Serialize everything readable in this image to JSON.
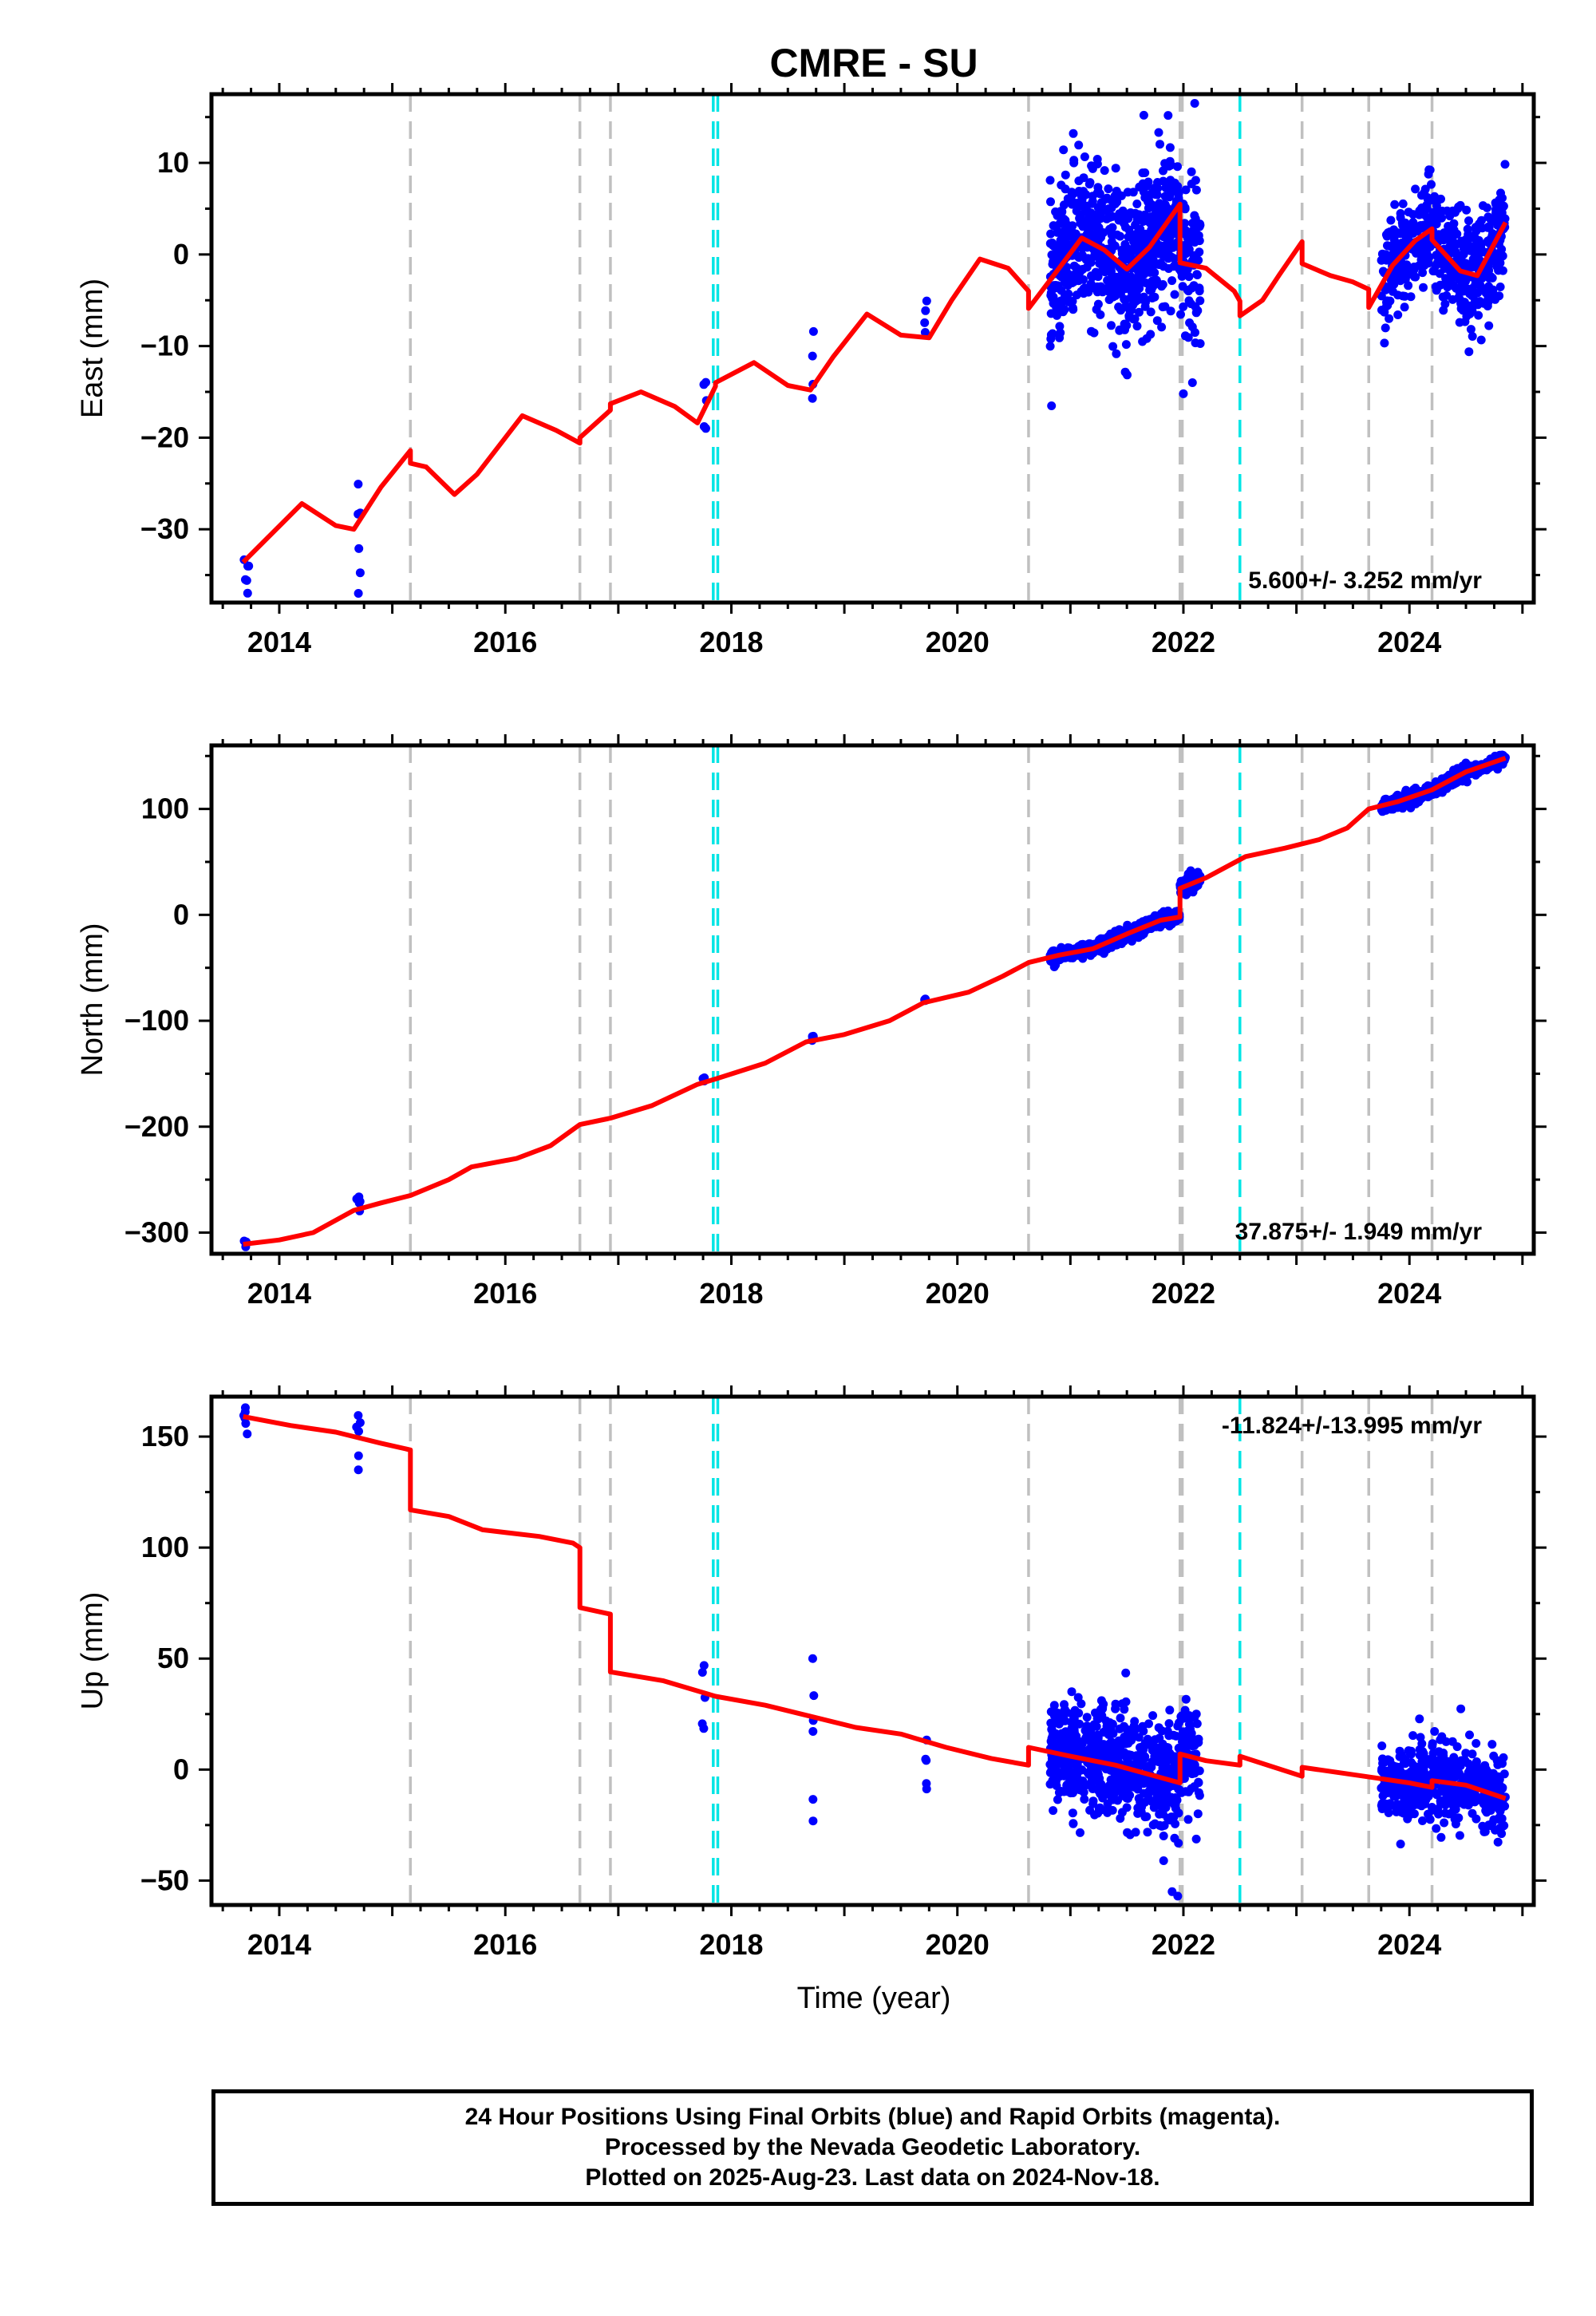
{
  "title": "CMRE - SU",
  "xlabel": "Time (year)",
  "footer": {
    "line1": "24 Hour Positions Using Final Orbits (blue) and Rapid Orbits (magenta).",
    "line2": "Processed by the Nevada Geodetic Laboratory.",
    "line3": "Plotted on 2025-Aug-23. Last data on 2024-Nov-18."
  },
  "colors": {
    "data": "#0000ff",
    "model": "#ff0000",
    "equipment_change": "#c0c0c0",
    "earthquake": "#00e5e5"
  },
  "chart_data": [
    {
      "type": "scatter",
      "ylabel": "East (mm)",
      "xlim": [
        2013.4,
        2025.1
      ],
      "ylim": [
        -38,
        17.5
      ],
      "yticks": [
        -30,
        -20,
        -10,
        0,
        10
      ],
      "xticks": [
        2014,
        2016,
        2018,
        2020,
        2022,
        2024
      ],
      "rate_text": "5.600+/- 3.252 mm/yr",
      "rate_position": "bottom-right",
      "scatter_clusters": [
        {
          "x": [
            2013.68,
            2013.73
          ],
          "y_center": -33,
          "y_spread": 2.5,
          "n": 5
        },
        {
          "x": [
            2014.69,
            2014.72
          ],
          "y_center": -30,
          "y_spread": 4,
          "n": 5
        },
        {
          "x": [
            2017.75,
            2017.78
          ],
          "y_center": -16,
          "y_spread": 2,
          "n": 5
        },
        {
          "x": [
            2018.71,
            2018.73
          ],
          "y_center": -11,
          "y_spread": 4,
          "n": 4
        },
        {
          "x": [
            2019.71,
            2019.73
          ],
          "y_center": -7,
          "y_spread": 1.5,
          "n": 4
        },
        {
          "x": [
            2020.82,
            2021.95
          ],
          "y_center": 0,
          "y_spread": 4,
          "n": 700
        },
        {
          "x": [
            2021.95,
            2022.15
          ],
          "y_center": -2,
          "y_spread": 4,
          "n": 90
        },
        {
          "x": [
            2023.75,
            2024.85
          ],
          "y_center": 0,
          "y_spread": 3,
          "n": 500
        }
      ],
      "outliers": [
        [
          2021.65,
          15.2
        ],
        [
          2022.1,
          16.5
        ],
        [
          2022.0,
          -15.2
        ],
        [
          2022.08,
          -14
        ],
        [
          2013.7,
          -35.5
        ],
        [
          2014.7,
          -37
        ]
      ],
      "model_breaks": [
        2015.16,
        2016.66,
        2016.93,
        2017.86,
        2020.63,
        2021.97,
        2022.5,
        2023.05,
        2023.64,
        2024.2
      ],
      "model_curve": [
        [
          2013.68,
          -33.6
        ],
        [
          2014.2,
          -27.2
        ],
        [
          2014.5,
          -29.6
        ],
        [
          2014.66,
          -30.0
        ],
        [
          2014.9,
          -25.4
        ],
        [
          2015.16,
          -21.4
        ],
        [
          2015.16,
          -22.8
        ],
        [
          2015.3,
          -23.2
        ],
        [
          2015.55,
          -26.2
        ],
        [
          2015.75,
          -24.0
        ],
        [
          2016.15,
          -17.6
        ],
        [
          2016.45,
          -19.2
        ],
        [
          2016.66,
          -20.6
        ],
        [
          2016.66,
          -20.0
        ],
        [
          2016.93,
          -17.0
        ],
        [
          2016.93,
          -16.3
        ],
        [
          2017.2,
          -15.0
        ],
        [
          2017.5,
          -16.6
        ],
        [
          2017.7,
          -18.4
        ],
        [
          2017.86,
          -14.4
        ],
        [
          2017.86,
          -14.0
        ],
        [
          2018.2,
          -11.8
        ],
        [
          2018.5,
          -14.3
        ],
        [
          2018.7,
          -14.8
        ],
        [
          2018.9,
          -11.2
        ],
        [
          2019.2,
          -6.5
        ],
        [
          2019.5,
          -8.8
        ],
        [
          2019.75,
          -9.1
        ],
        [
          2019.95,
          -5.0
        ],
        [
          2020.2,
          -0.5
        ],
        [
          2020.45,
          -1.5
        ],
        [
          2020.63,
          -4.0
        ],
        [
          2020.63,
          -5.9
        ],
        [
          2020.9,
          -1.5
        ],
        [
          2021.1,
          1.8
        ],
        [
          2021.3,
          0.5
        ],
        [
          2021.5,
          -1.6
        ],
        [
          2021.7,
          0.8
        ],
        [
          2021.97,
          5.5
        ],
        [
          2021.97,
          -0.9
        ],
        [
          2022.2,
          -1.5
        ],
        [
          2022.45,
          -4.0
        ],
        [
          2022.5,
          -5.1
        ],
        [
          2022.5,
          -6.7
        ],
        [
          2022.7,
          -5.0
        ],
        [
          2022.85,
          -2.2
        ],
        [
          2023.05,
          1.4
        ],
        [
          2023.05,
          -1.0
        ],
        [
          2023.3,
          -2.3
        ],
        [
          2023.5,
          -3.0
        ],
        [
          2023.64,
          -3.8
        ],
        [
          2023.64,
          -5.8
        ],
        [
          2023.85,
          -1.2
        ],
        [
          2024.05,
          1.5
        ],
        [
          2024.2,
          2.8
        ],
        [
          2024.2,
          1.6
        ],
        [
          2024.45,
          -1.8
        ],
        [
          2024.6,
          -2.3
        ],
        [
          2024.85,
          3.5
        ]
      ]
    },
    {
      "type": "scatter",
      "ylabel": "North (mm)",
      "xlim": [
        2013.4,
        2025.1
      ],
      "ylim": [
        -320,
        160
      ],
      "yticks": [
        -300,
        -200,
        -100,
        0,
        100
      ],
      "xticks": [
        2014,
        2016,
        2018,
        2020,
        2022,
        2024
      ],
      "rate_text": "37.875+/- 1.949 mm/yr",
      "rate_position": "bottom-right",
      "scatter_clusters": [
        {
          "x": [
            2013.68,
            2013.72
          ],
          "y_center": -311,
          "y_spread": 2,
          "n": 4
        },
        {
          "x": [
            2014.68,
            2014.72
          ],
          "y_center": -270,
          "y_spread": 4,
          "n": 5
        },
        {
          "x": [
            2017.74,
            2017.77
          ],
          "y_center": -155,
          "y_spread": 2,
          "n": 4
        },
        {
          "x": [
            2018.71,
            2018.73
          ],
          "y_center": -117,
          "y_spread": 3,
          "n": 4
        },
        {
          "x": [
            2019.71,
            2019.73
          ],
          "y_center": -80,
          "y_spread": 2,
          "n": 3
        },
        {
          "x": [
            2020.82,
            2021.95
          ],
          "y_center": -20,
          "y_spread": 3,
          "n": 700
        },
        {
          "x": [
            2021.95,
            2022.15
          ],
          "y_center": 30,
          "y_spread": 4,
          "n": 90
        },
        {
          "x": [
            2023.75,
            2024.85
          ],
          "y_center": 120,
          "y_spread": 3,
          "n": 500
        }
      ],
      "outliers": [],
      "model_breaks": [
        2021.97
      ],
      "model_curve": [
        [
          2013.68,
          -311
        ],
        [
          2014.0,
          -307
        ],
        [
          2014.3,
          -300
        ],
        [
          2014.66,
          -279
        ],
        [
          2014.9,
          -272
        ],
        [
          2015.16,
          -265
        ],
        [
          2015.5,
          -250
        ],
        [
          2015.7,
          -238
        ],
        [
          2016.1,
          -230
        ],
        [
          2016.4,
          -218
        ],
        [
          2016.66,
          -198
        ],
        [
          2016.93,
          -192
        ],
        [
          2017.3,
          -180
        ],
        [
          2017.7,
          -160
        ],
        [
          2017.86,
          -155
        ],
        [
          2018.3,
          -140
        ],
        [
          2018.66,
          -120
        ],
        [
          2019.0,
          -113
        ],
        [
          2019.4,
          -100
        ],
        [
          2019.7,
          -83
        ],
        [
          2020.1,
          -73
        ],
        [
          2020.4,
          -58
        ],
        [
          2020.63,
          -45
        ],
        [
          2020.9,
          -38
        ],
        [
          2021.2,
          -32
        ],
        [
          2021.5,
          -18
        ],
        [
          2021.8,
          -5
        ],
        [
          2021.97,
          -2
        ],
        [
          2021.97,
          25
        ],
        [
          2022.2,
          35
        ],
        [
          2022.55,
          55
        ],
        [
          2022.9,
          63
        ],
        [
          2023.2,
          71
        ],
        [
          2023.45,
          82
        ],
        [
          2023.64,
          100
        ],
        [
          2023.9,
          107
        ],
        [
          2024.2,
          118
        ],
        [
          2024.5,
          135
        ],
        [
          2024.85,
          148
        ]
      ]
    },
    {
      "type": "scatter",
      "ylabel": "Up (mm)",
      "xlim": [
        2013.4,
        2025.1
      ],
      "ylim": [
        -61,
        168
      ],
      "yticks": [
        -50,
        0,
        50,
        100,
        150
      ],
      "xticks": [
        2014,
        2016,
        2018,
        2020,
        2022,
        2024
      ],
      "rate_text": "-11.824+/-13.995 mm/yr",
      "rate_position": "top-right",
      "scatter_clusters": [
        {
          "x": [
            2013.68,
            2013.72
          ],
          "y_center": 158,
          "y_spread": 4,
          "n": 5
        },
        {
          "x": [
            2014.68,
            2014.72
          ],
          "y_center": 152,
          "y_spread": 8,
          "n": 5
        },
        {
          "x": [
            2017.74,
            2017.77
          ],
          "y_center": 33,
          "y_spread": 8,
          "n": 5
        },
        {
          "x": [
            2018.71,
            2018.73
          ],
          "y_center": 22,
          "y_spread": 15,
          "n": 5
        },
        {
          "x": [
            2019.71,
            2019.73
          ],
          "y_center": 9,
          "y_spread": 8,
          "n": 5
        },
        {
          "x": [
            2020.82,
            2021.95
          ],
          "y_center": 5,
          "y_spread": 12,
          "n": 700
        },
        {
          "x": [
            2021.95,
            2022.15
          ],
          "y_center": 3,
          "y_spread": 12,
          "n": 90
        },
        {
          "x": [
            2023.75,
            2024.85
          ],
          "y_center": -7,
          "y_spread": 9,
          "n": 500
        }
      ],
      "outliers": [
        [
          2021.9,
          -55
        ],
        [
          2021.95,
          -57
        ],
        [
          2013.7,
          163
        ],
        [
          2014.7,
          135
        ],
        [
          2018.72,
          50
        ]
      ],
      "model_breaks": [
        2015.16,
        2016.66,
        2016.93,
        2020.63,
        2021.97,
        2022.5,
        2023.05,
        2024.2
      ],
      "model_curve": [
        [
          2013.68,
          159
        ],
        [
          2014.1,
          155
        ],
        [
          2014.5,
          152
        ],
        [
          2014.9,
          147
        ],
        [
          2015.16,
          144
        ],
        [
          2015.16,
          117
        ],
        [
          2015.5,
          114
        ],
        [
          2015.8,
          108
        ],
        [
          2016.3,
          105
        ],
        [
          2016.6,
          102
        ],
        [
          2016.66,
          100
        ],
        [
          2016.66,
          73
        ],
        [
          2016.93,
          70
        ],
        [
          2016.93,
          44
        ],
        [
          2017.4,
          40
        ],
        [
          2017.86,
          33
        ],
        [
          2018.3,
          29
        ],
        [
          2018.7,
          24
        ],
        [
          2019.1,
          19
        ],
        [
          2019.5,
          16
        ],
        [
          2019.9,
          10
        ],
        [
          2020.3,
          5
        ],
        [
          2020.63,
          2
        ],
        [
          2020.63,
          10
        ],
        [
          2021.0,
          6
        ],
        [
          2021.4,
          2
        ],
        [
          2021.97,
          -6
        ],
        [
          2021.97,
          7
        ],
        [
          2022.2,
          4
        ],
        [
          2022.5,
          2
        ],
        [
          2022.5,
          6
        ],
        [
          2023.05,
          -3
        ],
        [
          2023.05,
          1
        ],
        [
          2023.6,
          -3
        ],
        [
          2024.0,
          -6
        ],
        [
          2024.2,
          -8
        ],
        [
          2024.2,
          -5
        ],
        [
          2024.5,
          -7
        ],
        [
          2024.85,
          -13
        ]
      ]
    }
  ],
  "equipment_change_lines": [
    2015.16,
    2016.66,
    2016.93,
    2020.63,
    2021.97,
    2021.99,
    2023.05,
    2023.64,
    2024.2
  ],
  "earthquake_lines": [
    2017.84,
    2017.88,
    2022.5
  ]
}
